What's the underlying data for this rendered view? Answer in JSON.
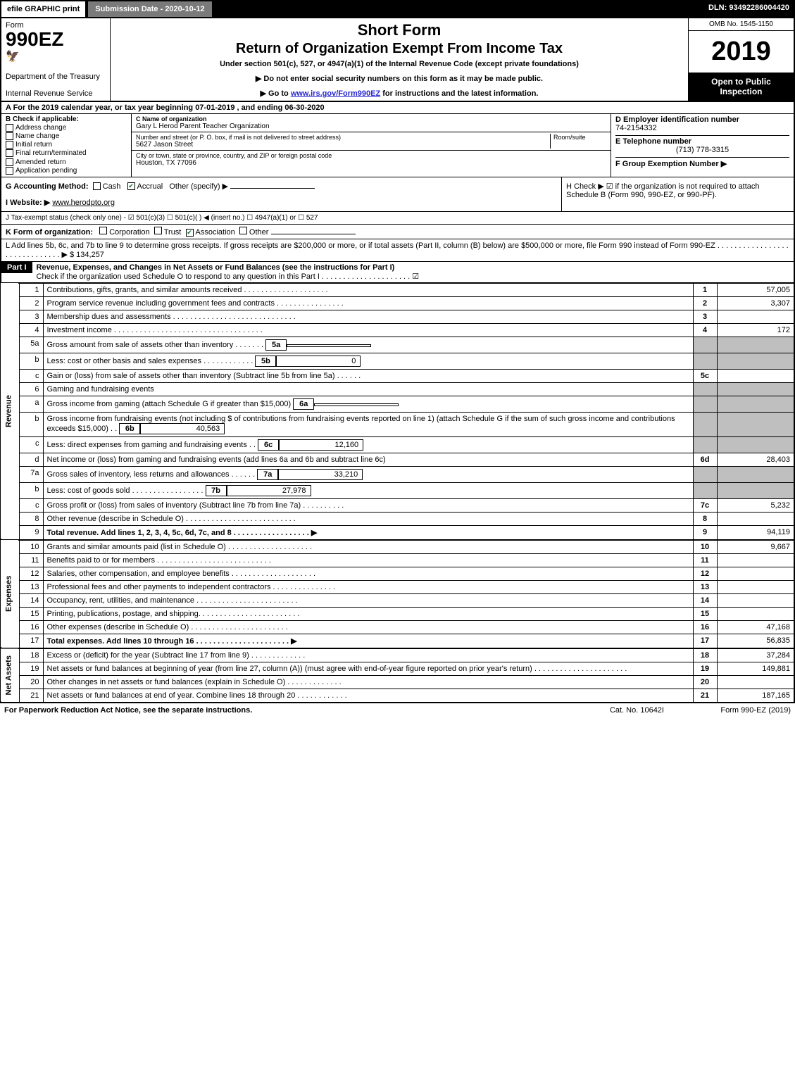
{
  "topbar": {
    "efile": "efile GRAPHIC print",
    "submission": "Submission Date - 2020-10-12",
    "dln": "DLN: 93492286004420"
  },
  "header": {
    "form_label": "Form",
    "form_number": "990EZ",
    "dept": "Department of the Treasury",
    "irs": "Internal Revenue Service",
    "title1": "Short Form",
    "title2": "Return of Organization Exempt From Income Tax",
    "subtitle": "Under section 501(c), 527, or 4947(a)(1) of the Internal Revenue Code (except private foundations)",
    "note1": "▶ Do not enter social security numbers on this form as it may be made public.",
    "note2_pre": "▶ Go to ",
    "note2_link": "www.irs.gov/Form990EZ",
    "note2_post": " for instructions and the latest information.",
    "omb": "OMB No. 1545-1150",
    "year": "2019",
    "inspection": "Open to Public Inspection"
  },
  "rowA": "A For the 2019 calendar year, or tax year beginning 07-01-2019 , and ending 06-30-2020",
  "boxB": {
    "title": "B Check if applicable:",
    "items": [
      "Address change",
      "Name change",
      "Initial return",
      "Final return/terminated",
      "Amended return",
      "Application pending"
    ]
  },
  "boxC": {
    "c_label": "C Name of organization",
    "c_value": "Gary L Herod Parent Teacher Organization",
    "addr_label": "Number and street (or P. O. box, if mail is not delivered to street address)",
    "addr_value": "5627 Jason Street",
    "room_label": "Room/suite",
    "city_label": "City or town, state or province, country, and ZIP or foreign postal code",
    "city_value": "Houston, TX  77096"
  },
  "boxD": {
    "d_label": "D Employer identification number",
    "d_value": "74-2154332",
    "e_label": "E Telephone number",
    "e_value": "(713) 778-3315",
    "f_label": "F Group Exemption Number ▶"
  },
  "rowG": {
    "label": "G Accounting Method:",
    "opts": [
      "Cash",
      "Accrual",
      "Other (specify) ▶"
    ]
  },
  "rowH": "H  Check ▶ ☑ if the organization is not required to attach Schedule B (Form 990, 990-EZ, or 990-PF).",
  "rowI": {
    "label": "I Website: ▶",
    "value": "www.herodpto.org"
  },
  "rowJ": "J Tax-exempt status (check only one) - ☑ 501(c)(3)  ☐ 501(c)(  ) ◀ (insert no.)  ☐ 4947(a)(1) or  ☐ 527",
  "rowK": {
    "label": "K Form of organization:",
    "opts": [
      "Corporation",
      "Trust",
      "Association",
      "Other"
    ]
  },
  "rowL": {
    "text": "L Add lines 5b, 6c, and 7b to line 9 to determine gross receipts. If gross receipts are $200,000 or more, or if total assets (Part II, column (B) below) are $500,000 or more, file Form 990 instead of Form 990-EZ . . . . . . . . . . . . . . . . . . . . . . . . . . . . . . ▶ $ 134,257"
  },
  "partI": {
    "header": "Part I",
    "title": "Revenue, Expenses, and Changes in Net Assets or Fund Balances (see the instructions for Part I)",
    "check": "Check if the organization used Schedule O to respond to any question in this Part I . . . . . . . . . . . . . . . . . . . . . ☑"
  },
  "lines": [
    {
      "n": "1",
      "d": "Contributions, gifts, grants, and similar amounts received . . . . . . . . . . . . . . . . . . . .",
      "box": "1",
      "amt": "57,005"
    },
    {
      "n": "2",
      "d": "Program service revenue including government fees and contracts . . . . . . . . . . . . . . . .",
      "box": "2",
      "amt": "3,307"
    },
    {
      "n": "3",
      "d": "Membership dues and assessments . . . . . . . . . . . . . . . . . . . . . . . . . . . . .",
      "box": "3",
      "amt": ""
    },
    {
      "n": "4",
      "d": "Investment income . . . . . . . . . . . . . . . . . . . . . . . . . . . . . . . . . . .",
      "box": "4",
      "amt": "172"
    },
    {
      "n": "5a",
      "d": "Gross amount from sale of assets other than inventory . . . . . . .",
      "inner": "5a",
      "inneramt": ""
    },
    {
      "n": "b",
      "d": "Less: cost or other basis and sales expenses . . . . . . . . . . . .",
      "inner": "5b",
      "inneramt": "0"
    },
    {
      "n": "c",
      "d": "Gain or (loss) from sale of assets other than inventory (Subtract line 5b from line 5a) . . . . . .",
      "box": "5c",
      "amt": ""
    },
    {
      "n": "6",
      "d": "Gaming and fundraising events"
    },
    {
      "n": "a",
      "d": "Gross income from gaming (attach Schedule G if greater than $15,000)",
      "inner": "6a",
      "inneramt": ""
    },
    {
      "n": "b",
      "d": "Gross income from fundraising events (not including $             of contributions from fundraising events reported on line 1) (attach Schedule G if the sum of such gross income and contributions exceeds $15,000)   . .",
      "inner": "6b",
      "inneramt": "40,563"
    },
    {
      "n": "c",
      "d": "Less: direct expenses from gaming and fundraising events        . .",
      "inner": "6c",
      "inneramt": "12,160"
    },
    {
      "n": "d",
      "d": "Net income or (loss) from gaming and fundraising events (add lines 6a and 6b and subtract line 6c)",
      "box": "6d",
      "amt": "28,403"
    },
    {
      "n": "7a",
      "d": "Gross sales of inventory, less returns and allowances . . . . . .",
      "inner": "7a",
      "inneramt": "33,210"
    },
    {
      "n": "b",
      "d": "Less: cost of goods sold        . . . . . . . . . . . . . . . . .",
      "inner": "7b",
      "inneramt": "27,978"
    },
    {
      "n": "c",
      "d": "Gross profit or (loss) from sales of inventory (Subtract line 7b from line 7a) . . . . . . . . . .",
      "box": "7c",
      "amt": "5,232"
    },
    {
      "n": "8",
      "d": "Other revenue (describe in Schedule O) . . . . . . . . . . . . . . . . . . . . . . . . . .",
      "box": "8",
      "amt": ""
    },
    {
      "n": "9",
      "d": "Total revenue. Add lines 1, 2, 3, 4, 5c, 6d, 7c, and 8  . . . . . . . . . . . . . . . . . .  ▶",
      "box": "9",
      "amt": "94,119",
      "bold": true
    }
  ],
  "expense_lines": [
    {
      "n": "10",
      "d": "Grants and similar amounts paid (list in Schedule O) . . . . . . . . . . . . . . . . . . . .",
      "box": "10",
      "amt": "9,667"
    },
    {
      "n": "11",
      "d": "Benefits paid to or for members     . . . . . . . . . . . . . . . . . . . . . . . . . . .",
      "box": "11",
      "amt": ""
    },
    {
      "n": "12",
      "d": "Salaries, other compensation, and employee benefits . . . . . . . . . . . . . . . . . . . .",
      "box": "12",
      "amt": ""
    },
    {
      "n": "13",
      "d": "Professional fees and other payments to independent contractors . . . . . . . . . . . . . . .",
      "box": "13",
      "amt": ""
    },
    {
      "n": "14",
      "d": "Occupancy, rent, utilities, and maintenance . . . . . . . . . . . . . . . . . . . . . . . .",
      "box": "14",
      "amt": ""
    },
    {
      "n": "15",
      "d": "Printing, publications, postage, and shipping. . . . . . . . . . . . . . . . . . . . . . . .",
      "box": "15",
      "amt": ""
    },
    {
      "n": "16",
      "d": "Other expenses (describe in Schedule O)     . . . . . . . . . . . . . . . . . . . . . . .",
      "box": "16",
      "amt": "47,168"
    },
    {
      "n": "17",
      "d": "Total expenses. Add lines 10 through 16    . . . . . . . . . . . . . . . . . . . . . .  ▶",
      "box": "17",
      "amt": "56,835",
      "bold": true
    }
  ],
  "asset_lines": [
    {
      "n": "18",
      "d": "Excess or (deficit) for the year (Subtract line 17 from line 9)        . . . . . . . . . . . . .",
      "box": "18",
      "amt": "37,284"
    },
    {
      "n": "19",
      "d": "Net assets or fund balances at beginning of year (from line 27, column (A)) (must agree with end-of-year figure reported on prior year's return) . . . . . . . . . . . . . . . . . . . . . .",
      "box": "19",
      "amt": "149,881"
    },
    {
      "n": "20",
      "d": "Other changes in net assets or fund balances (explain in Schedule O) . . . . . . . . . . . . .",
      "box": "20",
      "amt": ""
    },
    {
      "n": "21",
      "d": "Net assets or fund balances at end of year. Combine lines 18 through 20 . . . . . . . . . . . .",
      "box": "21",
      "amt": "187,165"
    }
  ],
  "section_labels": {
    "revenue": "Revenue",
    "expenses": "Expenses",
    "assets": "Net Assets"
  },
  "footer": {
    "left": "For Paperwork Reduction Act Notice, see the separate instructions.",
    "mid": "Cat. No. 10642I",
    "right": "Form 990-EZ (2019)"
  },
  "style": {
    "bg": "#ffffff",
    "border": "#000000",
    "header_black": "#000000",
    "shade": "#bfbfbf",
    "link": "#2727d0",
    "check_green": "#0a6b2f"
  }
}
